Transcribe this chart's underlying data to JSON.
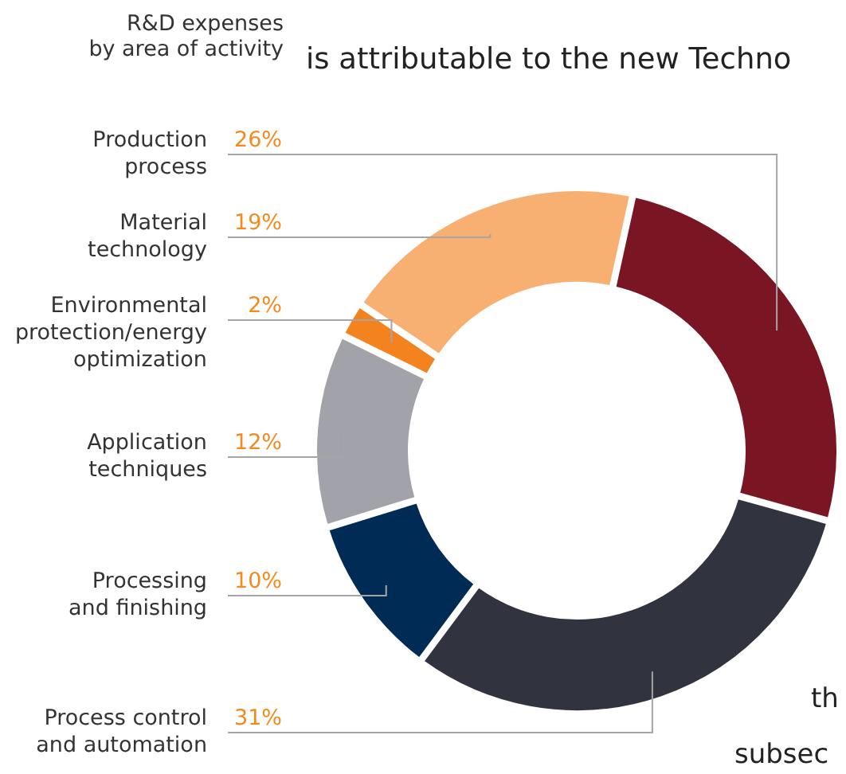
{
  "chart_data": {
    "type": "donut",
    "title": "R&D expenses\nby area of activity",
    "categories": [
      "Production\nprocess",
      "Material\ntechnology",
      "Environmental\nprotection/energy\noptimization",
      "Application\ntechniques",
      "Processing\nand finishing",
      "Process control\nand automation"
    ],
    "values": [
      26,
      19,
      2,
      12,
      10,
      31
    ],
    "value_labels": [
      "26%",
      "19%",
      "2%",
      "12%",
      "10%",
      "31%"
    ],
    "colors": [
      "#7a1624",
      "#f8b072",
      "#f4821f",
      "#a2a3aa",
      "#002b55",
      "#31333f"
    ],
    "annotations": [
      "is attributable to the new Techno",
      "th",
      "subsec"
    ]
  }
}
